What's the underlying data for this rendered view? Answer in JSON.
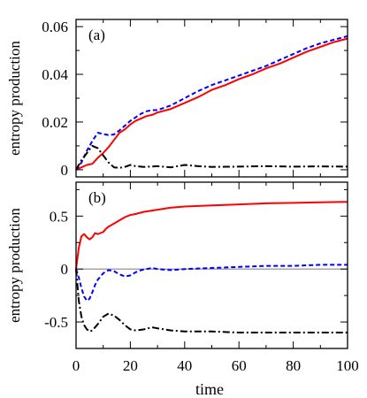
{
  "chart_data": [
    {
      "type": "line",
      "panel_label": "(a)",
      "ylabel": "entropy production",
      "xlim": [
        0,
        100
      ],
      "ylim": [
        -0.003,
        0.063
      ],
      "yticks": [
        0,
        0.02,
        0.04,
        0.06
      ],
      "ytick_labels": [
        "0",
        "0.02",
        "0.04",
        "0.06"
      ],
      "xticks": [
        0,
        20,
        40,
        60,
        80,
        100
      ],
      "show_xtick_labels": false,
      "grid": false,
      "series": [
        {
          "color": "#ff0000",
          "dash": "solid",
          "x": [
            0,
            2,
            4,
            6,
            8,
            10,
            12,
            14,
            16,
            18,
            20,
            22,
            24,
            26,
            28,
            30,
            35,
            40,
            45,
            50,
            55,
            60,
            65,
            70,
            75,
            80,
            85,
            90,
            95,
            100
          ],
          "y": [
            0,
            0.001,
            0.002,
            0.0025,
            0.005,
            0.007,
            0.0095,
            0.0125,
            0.0155,
            0.017,
            0.019,
            0.0205,
            0.0215,
            0.0225,
            0.023,
            0.024,
            0.0255,
            0.028,
            0.0305,
            0.0335,
            0.0355,
            0.038,
            0.04,
            0.0425,
            0.0445,
            0.047,
            0.0495,
            0.0515,
            0.0535,
            0.055
          ]
        },
        {
          "color": "#0000ff",
          "dash": "dashed",
          "x": [
            0,
            2,
            4,
            6,
            8,
            10,
            12,
            14,
            16,
            18,
            20,
            22,
            24,
            26,
            28,
            30,
            35,
            40,
            45,
            50,
            55,
            60,
            65,
            70,
            75,
            80,
            85,
            90,
            95,
            100
          ],
          "y": [
            0,
            0.003,
            0.008,
            0.012,
            0.0155,
            0.015,
            0.0145,
            0.0148,
            0.0165,
            0.0185,
            0.0205,
            0.022,
            0.0235,
            0.0245,
            0.025,
            0.025,
            0.027,
            0.03,
            0.033,
            0.0355,
            0.0375,
            0.0395,
            0.0415,
            0.0435,
            0.046,
            0.0485,
            0.051,
            0.053,
            0.0545,
            0.056
          ]
        },
        {
          "color": "#000000",
          "dash": "dashdot",
          "x": [
            0,
            2,
            4,
            6,
            8,
            10,
            12,
            14,
            16,
            18,
            20,
            22,
            25,
            30,
            35,
            40,
            45,
            50,
            60,
            70,
            80,
            90,
            100
          ],
          "y": [
            0,
            0.004,
            0.007,
            0.01,
            0.009,
            0.006,
            0.003,
            0.001,
            0.0008,
            0.0012,
            0.002,
            0.0015,
            0.0012,
            0.0015,
            0.001,
            0.002,
            0.0015,
            0.0012,
            0.0013,
            0.0015,
            0.0013,
            0.0014,
            0.0013
          ]
        }
      ]
    },
    {
      "type": "line",
      "panel_label": "(b)",
      "ylabel": "entropy production",
      "xlabel": "time",
      "xlim": [
        0,
        100
      ],
      "ylim": [
        -0.75,
        0.82
      ],
      "yticks": [
        -0.5,
        0,
        0.5
      ],
      "ytick_labels": [
        "-0.5",
        "0",
        "0.5"
      ],
      "xticks": [
        0,
        20,
        40,
        60,
        80,
        100
      ],
      "xtick_labels": [
        "0",
        "20",
        "40",
        "60",
        "80",
        "100"
      ],
      "zero_line": true,
      "grid": false,
      "series": [
        {
          "color": "#ff0000",
          "dash": "solid",
          "x": [
            0,
            1,
            2,
            3,
            4,
            5,
            6,
            7,
            8,
            9,
            10,
            11,
            12,
            14,
            16,
            18,
            20,
            22,
            25,
            30,
            35,
            40,
            50,
            60,
            70,
            80,
            90,
            100
          ],
          "y": [
            0,
            0.2,
            0.31,
            0.33,
            0.3,
            0.28,
            0.3,
            0.34,
            0.33,
            0.34,
            0.35,
            0.38,
            0.4,
            0.43,
            0.46,
            0.49,
            0.51,
            0.52,
            0.54,
            0.56,
            0.58,
            0.59,
            0.6,
            0.61,
            0.62,
            0.625,
            0.63,
            0.635
          ]
        },
        {
          "color": "#0000ff",
          "dash": "dashed",
          "x": [
            0,
            1,
            2,
            3,
            4,
            5,
            6,
            7,
            8,
            10,
            12,
            14,
            16,
            18,
            20,
            22,
            24,
            26,
            28,
            30,
            35,
            40,
            50,
            60,
            70,
            80,
            90,
            100
          ],
          "y": [
            0,
            -0.08,
            -0.18,
            -0.26,
            -0.3,
            -0.28,
            -0.22,
            -0.15,
            -0.1,
            -0.04,
            -0.01,
            -0.02,
            -0.05,
            -0.07,
            -0.06,
            -0.03,
            -0.01,
            0.0,
            0.01,
            0.0,
            -0.01,
            0.0,
            0.01,
            0.02,
            0.03,
            0.03,
            0.04,
            0.04
          ]
        },
        {
          "color": "#000000",
          "dash": "dashdot",
          "x": [
            0,
            1,
            2,
            3,
            4,
            5,
            6,
            7,
            8,
            10,
            12,
            14,
            16,
            18,
            20,
            22,
            25,
            28,
            30,
            35,
            40,
            50,
            60,
            70,
            80,
            90,
            100
          ],
          "y": [
            0,
            -0.3,
            -0.45,
            -0.53,
            -0.57,
            -0.59,
            -0.58,
            -0.55,
            -0.52,
            -0.45,
            -0.42,
            -0.44,
            -0.48,
            -0.53,
            -0.57,
            -0.58,
            -0.57,
            -0.55,
            -0.56,
            -0.58,
            -0.59,
            -0.59,
            -0.6,
            -0.6,
            -0.6,
            -0.6,
            -0.6
          ]
        }
      ]
    }
  ]
}
